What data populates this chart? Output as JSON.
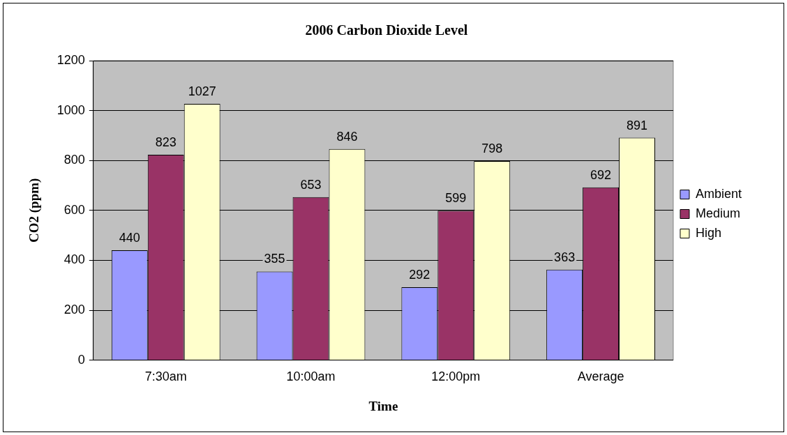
{
  "chart_data": {
    "type": "bar",
    "title": "2006 Carbon Dioxide Level",
    "xlabel": "Time",
    "ylabel": "CO2 (ppm)",
    "categories": [
      "7:30am",
      "10:00am",
      "12:00pm",
      "Average"
    ],
    "series": [
      {
        "name": "Ambient",
        "color": "#9999ff",
        "values": [
          440,
          355,
          292,
          363
        ]
      },
      {
        "name": "Medium",
        "color": "#993366",
        "values": [
          823,
          653,
          599,
          692
        ]
      },
      {
        "name": "High",
        "color": "#ffffcc",
        "values": [
          1027,
          846,
          798,
          891
        ]
      }
    ],
    "ylim": [
      0,
      1200
    ],
    "yticks": [
      0,
      200,
      400,
      600,
      800,
      1000,
      1200
    ],
    "grid": "y",
    "legend": "right",
    "data_labels": true
  }
}
